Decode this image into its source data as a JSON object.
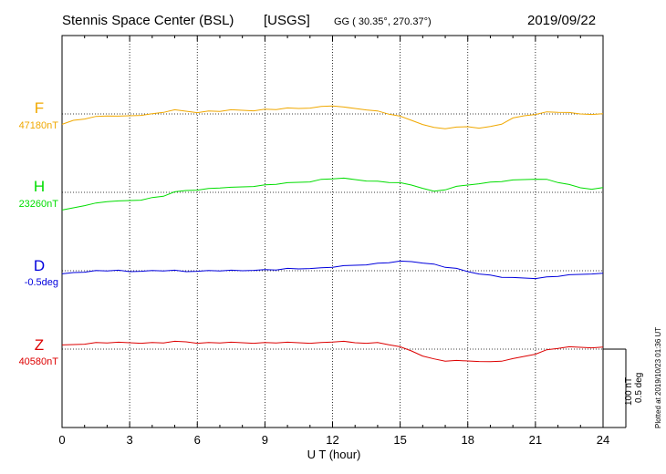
{
  "header": {
    "station": "Stennis Space Center (BSL)",
    "agency": "[USGS]",
    "coords": "GG ( 30.35°, 270.37°)",
    "date": "2019/09/22"
  },
  "footer": {
    "scale_nt": "100 nT",
    "scale_deg": "0.5 deg",
    "plotted": "Plotted at 2019/10/23 01:36 UT"
  },
  "chart_data": {
    "type": "line",
    "xlabel": "U T (hour)",
    "xlim": [
      0,
      24
    ],
    "xticks": [
      "0",
      "3",
      "6",
      "9",
      "12",
      "15",
      "18",
      "21",
      "24"
    ],
    "grid": true,
    "scale_bar": {
      "nT": 100,
      "deg": 0.5
    },
    "series": [
      {
        "name": "F",
        "baseline_label": "47180nT",
        "color": "#f0a800",
        "x": [
          0,
          0.5,
          1,
          1.5,
          2,
          2.5,
          3,
          3.5,
          4,
          4.5,
          5,
          5.5,
          6,
          6.5,
          7,
          7.5,
          8,
          8.5,
          9,
          9.5,
          10,
          10.5,
          11,
          11.5,
          12,
          12.5,
          13,
          13.5,
          14,
          14.5,
          15,
          15.5,
          16,
          16.5,
          17,
          17.5,
          18,
          18.5,
          19,
          19.5,
          20,
          20.5,
          21,
          21.5,
          22,
          22.5,
          23,
          23.5,
          24
        ],
        "values": [
          -12,
          -7,
          -5,
          -3,
          -2,
          -3,
          -2,
          -1,
          0,
          2,
          4,
          3,
          2,
          3,
          3,
          4,
          4,
          4,
          5,
          5,
          6,
          6,
          7,
          8,
          9,
          7,
          6,
          5,
          3,
          0,
          -3,
          -7,
          -11,
          -15,
          -16,
          -15,
          -14,
          -15,
          -14,
          -11,
          -5,
          -2,
          0,
          2,
          2,
          1,
          0,
          0,
          0
        ]
      },
      {
        "name": "H",
        "baseline_label": "23260nT",
        "color": "#00dd00",
        "x": [
          0,
          0.5,
          1,
          1.5,
          2,
          2.5,
          3,
          3.5,
          4,
          4.5,
          5,
          5.5,
          6,
          6.5,
          7,
          7.5,
          8,
          8.5,
          9,
          9.5,
          10,
          10.5,
          11,
          11.5,
          12,
          12.5,
          13,
          13.5,
          14,
          14.5,
          15,
          15.5,
          16,
          16.5,
          17,
          17.5,
          18,
          18.5,
          19,
          19.5,
          20,
          20.5,
          21,
          21.5,
          22,
          22.5,
          23,
          23.5,
          24
        ],
        "values": [
          -20,
          -17,
          -14,
          -12,
          -10,
          -10,
          -9,
          -8,
          -6,
          -4,
          0,
          2,
          3,
          4,
          5,
          5,
          6,
          7,
          8,
          9,
          10,
          11,
          12,
          14,
          15,
          15,
          14,
          13,
          12,
          11,
          10,
          8,
          5,
          1,
          3,
          6,
          8,
          10,
          11,
          12,
          13,
          14,
          15,
          14,
          11,
          8,
          5,
          4,
          5
        ]
      },
      {
        "name": "D",
        "baseline_label": "-0.5deg",
        "color": "#0000dd",
        "x": [
          0,
          0.5,
          1,
          1.5,
          2,
          2.5,
          3,
          3.5,
          4,
          4.5,
          5,
          5.5,
          6,
          6.5,
          7,
          7.5,
          8,
          8.5,
          9,
          9.5,
          10,
          10.5,
          11,
          11.5,
          12,
          12.5,
          13,
          13.5,
          14,
          14.5,
          15,
          15.5,
          16,
          16.5,
          17,
          17.5,
          18,
          18.5,
          19,
          19.5,
          20,
          20.5,
          21,
          21.5,
          22,
          22.5,
          23,
          23.5,
          24
        ],
        "values": [
          -4,
          -2,
          -1,
          0,
          0,
          0,
          -1,
          0,
          0,
          0,
          0,
          -1,
          0,
          0,
          0,
          0,
          0,
          1,
          1,
          1,
          2,
          2,
          3,
          3,
          4,
          5,
          6,
          7,
          8,
          9,
          10,
          10,
          9,
          7,
          4,
          2,
          -1,
          -3,
          -5,
          -7,
          -8,
          -8,
          -8,
          -7,
          -6,
          -5,
          -4,
          -3,
          -3
        ]
      },
      {
        "name": "Z",
        "baseline_label": "40580nT",
        "color": "#dd0000",
        "x": [
          0,
          0.5,
          1,
          1.5,
          2,
          2.5,
          3,
          3.5,
          4,
          4.5,
          5,
          5.5,
          6,
          6.5,
          7,
          7.5,
          8,
          8.5,
          9,
          9.5,
          10,
          10.5,
          11,
          11.5,
          12,
          12.5,
          13,
          13.5,
          14,
          14.5,
          15,
          15.5,
          16,
          16.5,
          17,
          17.5,
          18,
          18.5,
          19,
          19.5,
          20,
          20.5,
          21,
          21.5,
          22,
          22.5,
          23,
          23.5,
          24
        ],
        "values": [
          4,
          5,
          6,
          7,
          7,
          7,
          7,
          7,
          7,
          7,
          8,
          8,
          7,
          7,
          7,
          7,
          7,
          7,
          7,
          7,
          7,
          7,
          7,
          7,
          8,
          8,
          7,
          7,
          7,
          5,
          2,
          -2,
          -7,
          -11,
          -13,
          -13,
          -13,
          -13,
          -14,
          -13,
          -11,
          -8,
          -5,
          -1,
          1,
          2,
          2,
          2,
          2
        ]
      }
    ]
  }
}
